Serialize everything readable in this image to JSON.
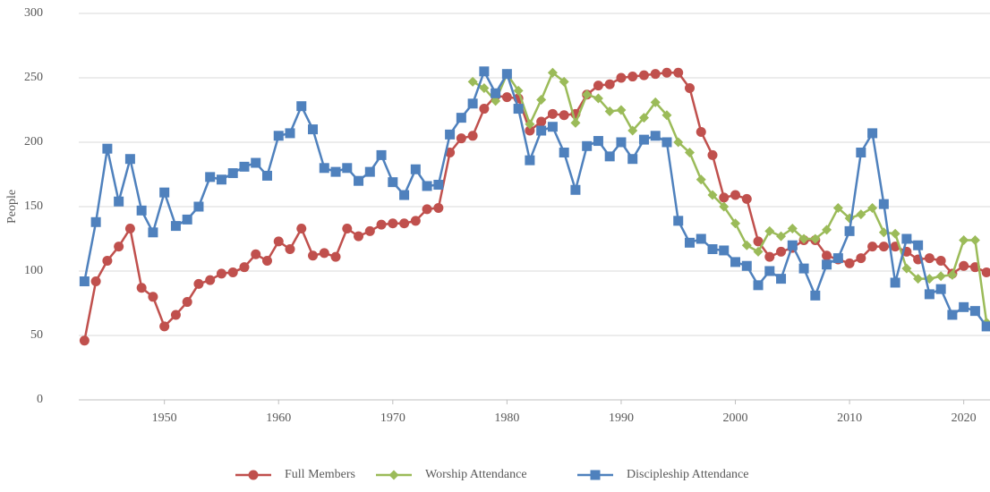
{
  "chart_data": {
    "type": "line",
    "y_label": "People",
    "x": [
      1943,
      1944,
      1945,
      1946,
      1947,
      1948,
      1949,
      1950,
      1951,
      1952,
      1953,
      1954,
      1955,
      1956,
      1957,
      1958,
      1959,
      1960,
      1961,
      1962,
      1963,
      1964,
      1965,
      1966,
      1967,
      1968,
      1969,
      1970,
      1971,
      1972,
      1973,
      1974,
      1975,
      1976,
      1977,
      1978,
      1979,
      1980,
      1981,
      1982,
      1983,
      1984,
      1985,
      1986,
      1987,
      1988,
      1989,
      1990,
      1991,
      1992,
      1993,
      1994,
      1995,
      1996,
      1997,
      1998,
      1999,
      2000,
      2001,
      2002,
      2003,
      2004,
      2005,
      2006,
      2007,
      2008,
      2009,
      2010,
      2011,
      2012,
      2013,
      2014,
      2015,
      2016,
      2017,
      2018,
      2019,
      2020,
      2021,
      2022
    ],
    "xlim": [
      1942.5,
      2022.3
    ],
    "xticks": [
      1950,
      1960,
      1970,
      1980,
      1990,
      2000,
      2010,
      2020
    ],
    "ylim": [
      0,
      300
    ],
    "yticks": [
      0,
      50,
      100,
      150,
      200,
      250,
      300
    ],
    "grid": true,
    "legend": "bottom",
    "series": [
      {
        "name": "Full Members",
        "color": "#c0504d",
        "marker": "circle",
        "values": [
          46,
          92,
          108,
          119,
          133,
          87,
          80,
          57,
          66,
          76,
          90,
          93,
          98,
          99,
          103,
          113,
          108,
          123,
          117,
          133,
          112,
          114,
          111,
          133,
          127,
          131,
          136,
          137,
          137,
          139,
          148,
          149,
          192,
          203,
          205,
          226,
          236,
          235,
          234,
          209,
          216,
          222,
          221,
          222,
          237,
          244,
          245,
          250,
          251,
          252,
          253,
          254,
          254,
          242,
          208,
          190,
          157,
          159,
          156,
          123,
          111,
          115,
          118,
          124,
          124,
          112,
          109,
          106,
          110,
          119,
          119,
          119,
          115,
          109,
          110,
          108,
          98,
          104,
          103,
          99
        ]
      },
      {
        "name": "Worship Attendance",
        "color": "#9bbb59",
        "marker": "diamond",
        "values": [
          null,
          null,
          null,
          null,
          null,
          null,
          null,
          null,
          null,
          null,
          null,
          null,
          null,
          null,
          null,
          null,
          null,
          null,
          null,
          null,
          null,
          null,
          null,
          null,
          null,
          null,
          null,
          null,
          null,
          null,
          null,
          null,
          null,
          null,
          247,
          242,
          232,
          253,
          240,
          214,
          233,
          254,
          247,
          215,
          237,
          234,
          224,
          225,
          209,
          219,
          231,
          221,
          200,
          192,
          171,
          159,
          150,
          137,
          120,
          115,
          131,
          127,
          133,
          125,
          125,
          132,
          149,
          141,
          144,
          149,
          130,
          129,
          102,
          94,
          94,
          96,
          97,
          124,
          124,
          60
        ]
      },
      {
        "name": "Discipleship Attendance",
        "color": "#4f81bd",
        "marker": "square",
        "values": [
          92,
          138,
          195,
          154,
          187,
          147,
          130,
          161,
          135,
          140,
          150,
          173,
          171,
          176,
          181,
          184,
          174,
          205,
          207,
          228,
          210,
          180,
          177,
          180,
          170,
          177,
          190,
          169,
          159,
          179,
          166,
          167,
          206,
          219,
          230,
          255,
          238,
          253,
          226,
          186,
          209,
          212,
          192,
          163,
          197,
          201,
          189,
          200,
          187,
          202,
          205,
          200,
          139,
          122,
          125,
          117,
          116,
          107,
          104,
          89,
          100,
          94,
          120,
          102,
          81,
          105,
          110,
          131,
          192,
          207,
          152,
          91,
          125,
          120,
          82,
          86,
          66,
          72,
          69,
          57
        ]
      }
    ]
  }
}
